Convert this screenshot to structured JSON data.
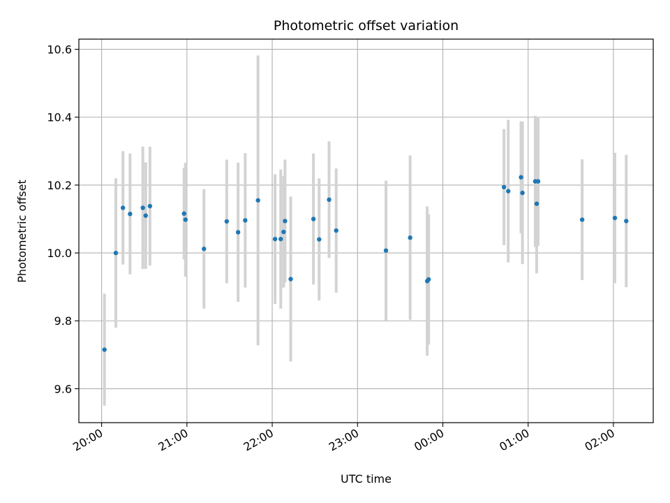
{
  "chart_data": {
    "type": "scatter",
    "title": "Photometric offset variation",
    "xlabel": "UTC time",
    "ylabel": "Photometric offset",
    "xaxis": "time (HH:MM, UTC)",
    "xlim": [
      "19:44",
      "02:28"
    ],
    "ylim": [
      9.5,
      10.63
    ],
    "x_ticks": [
      "20:00",
      "21:00",
      "22:00",
      "23:00",
      "00:00",
      "01:00",
      "02:00"
    ],
    "y_ticks": [
      9.6,
      9.8,
      10.0,
      10.2,
      10.4,
      10.6
    ],
    "grid": true,
    "legend": "none",
    "colors": {
      "points": "#1f77b4",
      "error_bars": "#d3d3d3",
      "grid": "#b0b0b0"
    },
    "series": [
      {
        "points": [
          {
            "x": "20:02",
            "y": 9.715,
            "err": 0.165
          },
          {
            "x": "20:10",
            "y": 10.0,
            "err": 0.22
          },
          {
            "x": "20:15",
            "y": 10.133,
            "err": 0.167
          },
          {
            "x": "20:20",
            "y": 10.115,
            "err": 0.178
          },
          {
            "x": "20:29",
            "y": 10.133,
            "err": 0.18
          },
          {
            "x": "20:31",
            "y": 10.11,
            "err": 0.157
          },
          {
            "x": "20:34",
            "y": 10.138,
            "err": 0.175
          },
          {
            "x": "20:58",
            "y": 10.116,
            "err": 0.135
          },
          {
            "x": "20:59",
            "y": 10.098,
            "err": 0.168
          },
          {
            "x": "21:12",
            "y": 10.012,
            "err": 0.176
          },
          {
            "x": "21:28",
            "y": 10.093,
            "err": 0.182
          },
          {
            "x": "21:36",
            "y": 10.061,
            "err": 0.205
          },
          {
            "x": "21:41",
            "y": 10.096,
            "err": 0.198
          },
          {
            "x": "21:50",
            "y": 10.155,
            "err": 0.427
          },
          {
            "x": "22:02",
            "y": 10.041,
            "err": 0.191
          },
          {
            "x": "22:06",
            "y": 10.041,
            "err": 0.205
          },
          {
            "x": "22:08",
            "y": 10.062,
            "err": 0.164
          },
          {
            "x": "22:09",
            "y": 10.094,
            "err": 0.181
          },
          {
            "x": "22:13",
            "y": 9.923,
            "err": 0.243
          },
          {
            "x": "22:29",
            "y": 10.1,
            "err": 0.193
          },
          {
            "x": "22:33",
            "y": 10.04,
            "err": 0.18
          },
          {
            "x": "22:40",
            "y": 10.157,
            "err": 0.172
          },
          {
            "x": "22:45",
            "y": 10.066,
            "err": 0.183
          },
          {
            "x": "23:20",
            "y": 10.007,
            "err": 0.206
          },
          {
            "x": "23:37",
            "y": 10.045,
            "err": 0.242
          },
          {
            "x": "23:49",
            "y": 9.917,
            "err": 0.22
          },
          {
            "x": "23:50",
            "y": 9.922,
            "err": 0.192
          },
          {
            "x": "00:43",
            "y": 10.194,
            "err": 0.171
          },
          {
            "x": "00:46",
            "y": 10.182,
            "err": 0.21
          },
          {
            "x": "00:55",
            "y": 10.223,
            "err": 0.165
          },
          {
            "x": "00:56",
            "y": 10.177,
            "err": 0.21
          },
          {
            "x": "01:05",
            "y": 10.211,
            "err": 0.193
          },
          {
            "x": "01:06",
            "y": 10.145,
            "err": 0.205
          },
          {
            "x": "01:07",
            "y": 10.211,
            "err": 0.19
          },
          {
            "x": "01:38",
            "y": 10.098,
            "err": 0.178
          },
          {
            "x": "02:01",
            "y": 10.103,
            "err": 0.192
          },
          {
            "x": "02:09",
            "y": 10.094,
            "err": 0.195
          }
        ]
      }
    ]
  }
}
